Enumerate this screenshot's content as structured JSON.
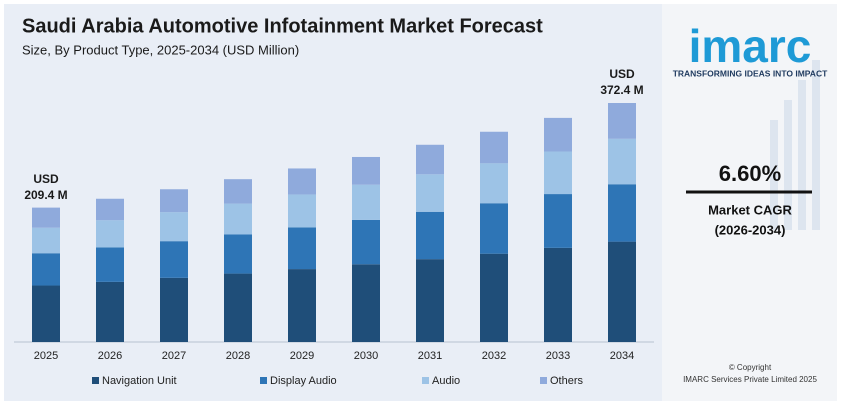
{
  "chart_data": {
    "type": "stacked-bar",
    "title": "Saudi Arabia Automotive Infotainment Market Forecast",
    "subtitle": "Size, By Product Type, 2025-2034 (USD Million)",
    "categories": [
      "2025",
      "2026",
      "2027",
      "2028",
      "2029",
      "2030",
      "2031",
      "2032",
      "2033",
      "2034"
    ],
    "series": [
      {
        "name": "Navigation Unit",
        "color": "#1f4e79",
        "values": [
          88.0,
          93.7,
          100.0,
          106.6,
          113.6,
          121.1,
          129.1,
          137.6,
          146.7,
          156.4
        ]
      },
      {
        "name": "Display Audio",
        "color": "#2e75b6",
        "values": [
          50.3,
          53.6,
          57.1,
          60.9,
          64.9,
          69.2,
          73.8,
          78.6,
          83.8,
          89.4
        ]
      },
      {
        "name": "Audio",
        "color": "#9dc3e6",
        "values": [
          39.8,
          42.4,
          45.2,
          48.2,
          51.4,
          54.8,
          58.4,
          62.2,
          66.3,
          70.8
        ]
      },
      {
        "name": "Others",
        "color": "#8faadc",
        "values": [
          31.3,
          33.5,
          35.7,
          38.0,
          40.5,
          43.2,
          46.0,
          49.2,
          52.4,
          55.8
        ]
      }
    ],
    "total_labels": [
      [
        "USD",
        "209.4 M"
      ],
      null,
      null,
      null,
      null,
      null,
      null,
      null,
      null,
      [
        "USD",
        "372.4 M"
      ]
    ],
    "legend": "bottom"
  },
  "side_panel": {
    "logo": "imarc",
    "tagline": "TRANSFORMING IDEAS INTO IMPACT",
    "cagr": "6.60%",
    "cagr_label": "Market CAGR",
    "cagr_period": "(2026-2034)",
    "copyright": "© Copyright",
    "company": "IMARC Services Private Limited 2025"
  }
}
